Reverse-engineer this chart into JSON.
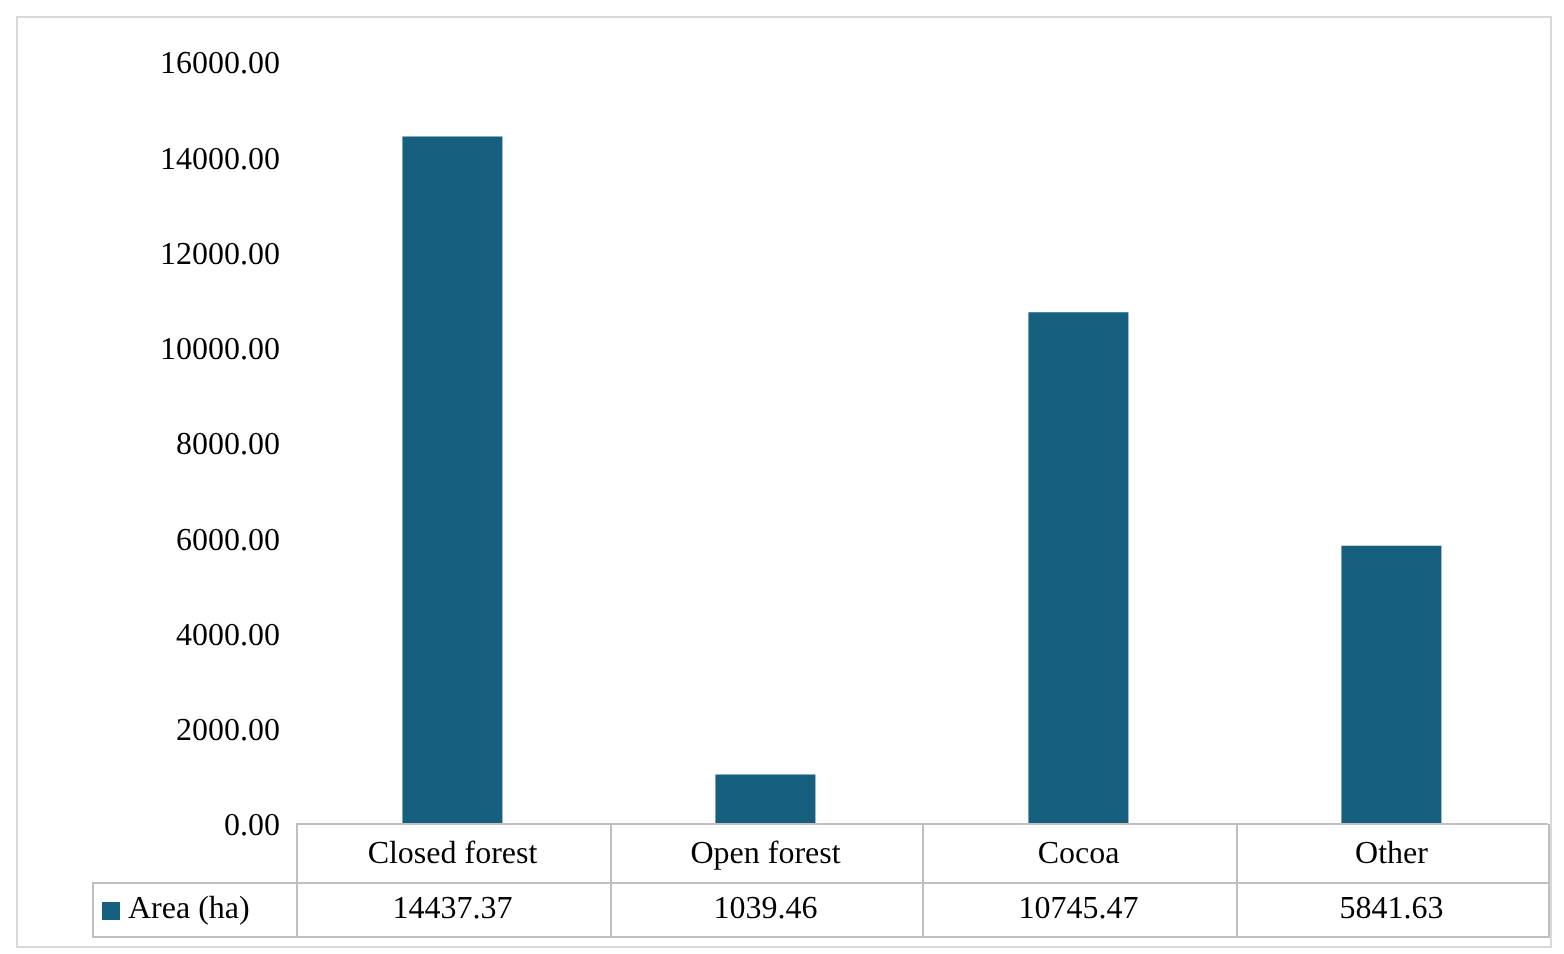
{
  "chart_data": {
    "type": "bar",
    "categories": [
      "Closed forest",
      "Open forest",
      "Cocoa",
      "Other"
    ],
    "series": [
      {
        "name": "Area (ha)",
        "color": "#175f7e",
        "values": [
          14437.37,
          1039.46,
          10745.47,
          5841.63
        ]
      }
    ],
    "ylim": [
      0,
      16000
    ],
    "yticks": [
      {
        "value": 0,
        "label": "0.00"
      },
      {
        "value": 2000,
        "label": "2000.00"
      },
      {
        "value": 4000,
        "label": "4000.00"
      },
      {
        "value": 6000,
        "label": "6000.00"
      },
      {
        "value": 8000,
        "label": "8000.00"
      },
      {
        "value": 10000,
        "label": "10000.00"
      },
      {
        "value": 12000,
        "label": "12000.00"
      },
      {
        "value": 14000,
        "label": "14000.00"
      },
      {
        "value": 16000,
        "label": "16000.00"
      }
    ],
    "grid": false,
    "legend": "bottom",
    "data_labels": true
  }
}
